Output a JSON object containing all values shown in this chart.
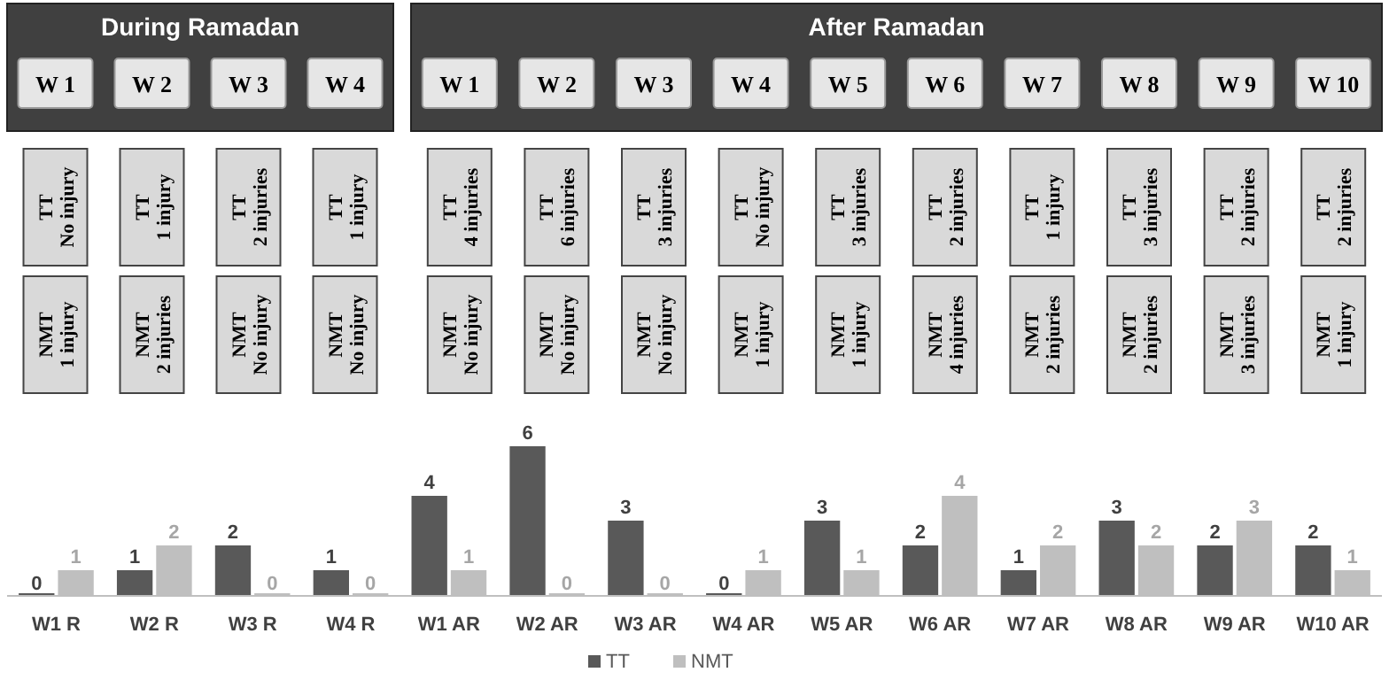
{
  "chart_data": [
    {
      "type": "other",
      "title": "During Ramadan",
      "categories": [
        "W 1",
        "W 2",
        "W 3",
        "W 4"
      ],
      "annotations": [
        "TT\nNo injury",
        "TT\n1 injury",
        "TT\n2 injuries",
        "TT\n1 injury",
        "NMT\n1 injury",
        "NMT\n2 injuries",
        "NMT\nNo injury",
        "NMT\nNo injury"
      ]
    },
    {
      "type": "other",
      "title": "After Ramadan",
      "categories": [
        "W 1",
        "W 2",
        "W 3",
        "W 4",
        "W 5",
        "W 6",
        "W 7",
        "W 8",
        "W 9",
        "W 10"
      ],
      "annotations": [
        "TT\n4 injuries",
        "TT\n6 injuries",
        "TT\n3 injuries",
        "TT\nNo injury",
        "TT\n3 injuries",
        "TT\n2 injuries",
        "TT\n1 injury",
        "TT\n3 injuries",
        "TT\n2 injuries",
        "TT\n2 injuries",
        "NMT\nNo injury",
        "NMT\nNo injury",
        "NMT\nNo injury",
        "NMT\n1 injury",
        "NMT\n1 injury",
        "NMT\n4 injuries",
        "NMT\n2 injuries",
        "NMT\n2 injuries",
        "NMT\n3 injuries",
        "NMT\n1 injury"
      ]
    },
    {
      "type": "bar",
      "categories": [
        "W1 R",
        "W2 R",
        "W3 R",
        "W4 R",
        "W1 AR",
        "W2 AR",
        "W3 AR",
        "W4 AR",
        "W5 AR",
        "W6 AR",
        "W7 AR",
        "W8 AR",
        "W9 AR",
        "W10 AR"
      ],
      "series": [
        {
          "name": "TT",
          "color": "#595959",
          "values": [
            0,
            1,
            2,
            1,
            4,
            6,
            3,
            0,
            3,
            2,
            1,
            3,
            2,
            2
          ]
        },
        {
          "name": "NMT",
          "color": "#bfbfbf",
          "values": [
            1,
            2,
            0,
            0,
            1,
            0,
            0,
            1,
            1,
            4,
            2,
            2,
            3,
            1
          ]
        }
      ],
      "data_labels": true,
      "legend": "bottom"
    }
  ]
}
